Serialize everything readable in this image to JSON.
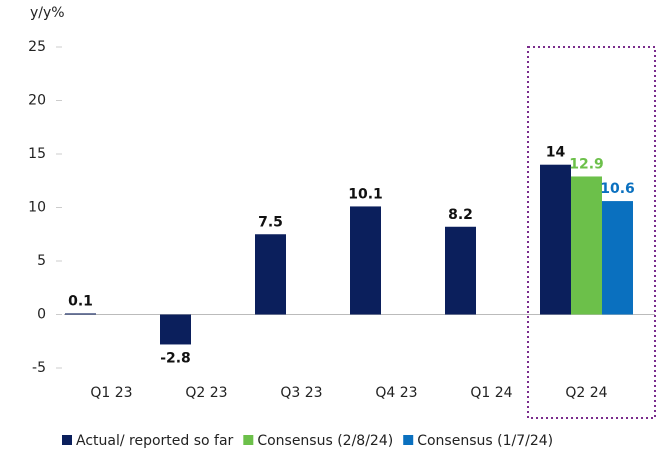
{
  "chart_data": {
    "type": "bar",
    "y_label": "y/y%",
    "categories": [
      "Q1 23",
      "Q2 23",
      "Q3 23",
      "Q4 23",
      "Q1 24",
      "Q2 24"
    ],
    "series": [
      {
        "name": "Actual/ reported so far",
        "color": "#0b1f5c",
        "values": [
          0.1,
          -2.8,
          7.5,
          10.1,
          8.2,
          14
        ]
      },
      {
        "name": "Consensus (2/8/24)",
        "color": "#6cc04a",
        "values": [
          null,
          null,
          null,
          null,
          null,
          12.9
        ]
      },
      {
        "name": "Consensus (1/7/24)",
        "color": "#0a70bf",
        "values": [
          null,
          null,
          null,
          null,
          null,
          10.6
        ]
      }
    ],
    "ylim": [
      -5,
      25
    ],
    "yticks": [
      -5,
      0,
      5,
      10,
      15,
      20,
      25
    ],
    "grid": false
  }
}
